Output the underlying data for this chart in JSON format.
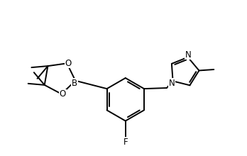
{
  "background": "#ffffff",
  "line_color": "#000000",
  "lw": 1.4,
  "fs": 8.5,
  "xlim": [
    -2.3,
    3.8
  ],
  "ylim": [
    -1.6,
    2.4
  ]
}
